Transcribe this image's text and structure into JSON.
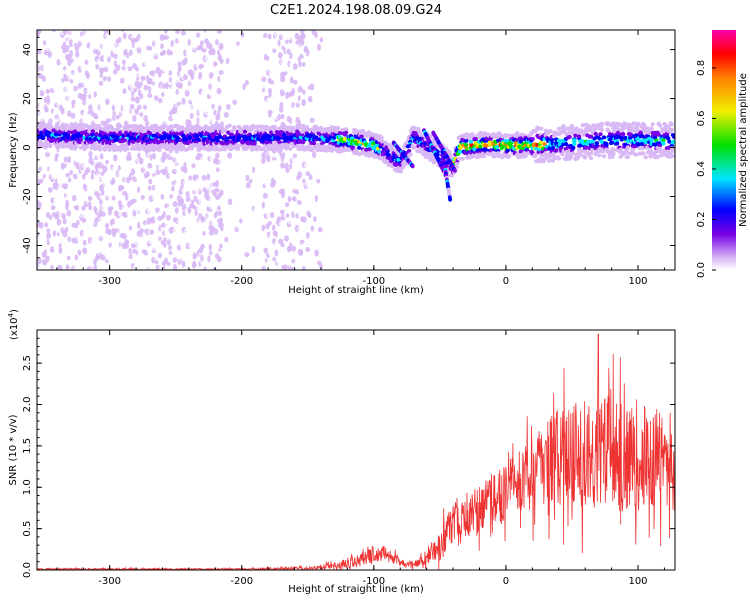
{
  "figure_title": "C2E1.2024.198.08.09.G24",
  "chart_data": [
    {
      "type": "heatmap",
      "title": "C2E1.2024.198.08.09.G24",
      "xlabel": "Height of straight line (km)",
      "ylabel": "Frequency (Hz)",
      "xlim": [
        -355,
        128
      ],
      "ylim": [
        -50,
        48
      ],
      "xticks": [
        -300,
        -200,
        -100,
        0,
        100
      ],
      "yticks": [
        -40,
        -20,
        0,
        20,
        40
      ],
      "xtick_labels": [
        "-300",
        "-200",
        "-100",
        "0",
        "100"
      ],
      "ytick_labels": [
        "-40",
        "-20",
        "0",
        "20",
        "40"
      ],
      "ridge_center_hz": [
        [
          -355,
          5
        ],
        [
          -300,
          4
        ],
        [
          -250,
          4
        ],
        [
          -200,
          4
        ],
        [
          -150,
          4
        ],
        [
          -120,
          3
        ],
        [
          -100,
          1
        ],
        [
          -90,
          -2
        ],
        [
          -80,
          -6
        ],
        [
          -70,
          4
        ],
        [
          -60,
          1
        ],
        [
          -50,
          -3
        ],
        [
          -40,
          -8
        ],
        [
          -35,
          0
        ],
        [
          -20,
          1
        ],
        [
          0,
          1
        ],
        [
          20,
          1
        ],
        [
          50,
          2
        ],
        [
          80,
          3
        ],
        [
          100,
          3
        ],
        [
          128,
          3
        ]
      ],
      "colorbar": {
        "label": "Normalized spectral amplitude",
        "range": [
          0,
          0.95
        ],
        "ticks": [
          0.0,
          0.2,
          0.4,
          0.6,
          0.8
        ],
        "tick_labels": [
          "0.0",
          "0.2",
          "0.4",
          "0.6",
          "0.8"
        ],
        "colors": [
          "#ffffff",
          "#d8b8f5",
          "#7a00e6",
          "#0000ff",
          "#00e5ff",
          "#00e000",
          "#f0f000",
          "#ff8000",
          "#ff0000",
          "#ff00aa"
        ]
      }
    },
    {
      "type": "line",
      "xlabel": "Height of straight line (km)",
      "ylabel": "SNR (10 * v/v)",
      "scale_label_base": "(x10",
      "scale_label_exp": "4",
      "scale_label_close": ")",
      "xlim": [
        -355,
        128
      ],
      "ylim": [
        0,
        2.9
      ],
      "xticks": [
        -300,
        -200,
        -100,
        0,
        100
      ],
      "yticks": [
        0.0,
        0.5,
        1.0,
        1.5,
        2.0,
        2.5
      ],
      "xtick_labels": [
        "-300",
        "-200",
        "-100",
        "0",
        "100"
      ],
      "ytick_labels": [
        "0.0",
        "0.5",
        "1.0",
        "1.5",
        "2.0",
        "2.5"
      ],
      "line_color": "#ee3333",
      "series": [
        {
          "name": "SNR",
          "envelope": [
            {
              "x": -355,
              "mean": 0.01,
              "spread": 0.01
            },
            {
              "x": -200,
              "mean": 0.01,
              "spread": 0.01
            },
            {
              "x": -150,
              "mean": 0.02,
              "spread": 0.02
            },
            {
              "x": -130,
              "mean": 0.05,
              "spread": 0.04
            },
            {
              "x": -110,
              "mean": 0.12,
              "spread": 0.08
            },
            {
              "x": -100,
              "mean": 0.2,
              "spread": 0.1
            },
            {
              "x": -90,
              "mean": 0.2,
              "spread": 0.1
            },
            {
              "x": -80,
              "mean": 0.08,
              "spread": 0.05
            },
            {
              "x": -70,
              "mean": 0.06,
              "spread": 0.04
            },
            {
              "x": -60,
              "mean": 0.15,
              "spread": 0.1
            },
            {
              "x": -50,
              "mean": 0.3,
              "spread": 0.18
            },
            {
              "x": -40,
              "mean": 0.55,
              "spread": 0.3
            },
            {
              "x": -20,
              "mean": 0.75,
              "spread": 0.3
            },
            {
              "x": 0,
              "mean": 0.95,
              "spread": 0.35
            },
            {
              "x": 20,
              "mean": 1.15,
              "spread": 0.45
            },
            {
              "x": 40,
              "mean": 1.35,
              "spread": 0.6
            },
            {
              "x": 60,
              "mean": 1.45,
              "spread": 0.7
            },
            {
              "x": 80,
              "mean": 1.4,
              "spread": 0.7
            },
            {
              "x": 100,
              "mean": 1.35,
              "spread": 0.65
            },
            {
              "x": 128,
              "mean": 1.3,
              "spread": 0.6
            }
          ],
          "peak_value": 2.85,
          "peak_x": 70
        }
      ]
    }
  ]
}
